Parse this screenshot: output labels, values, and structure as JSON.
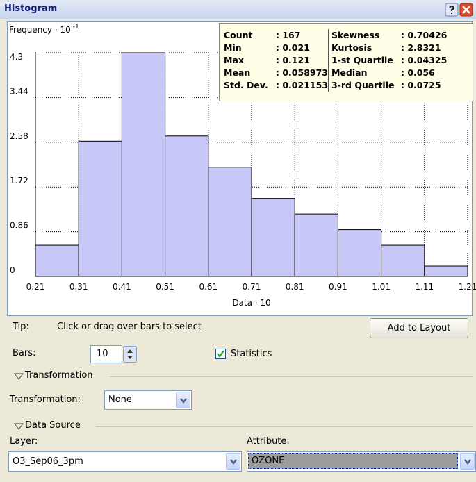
{
  "window": {
    "title": "Histogram"
  },
  "chart_data": {
    "type": "histogram",
    "ylabel": "Frequency · 10",
    "ylabel_exponent": "-1",
    "xlabel": "Data · 10",
    "bins": [
      0.21,
      0.31,
      0.41,
      0.51,
      0.61,
      0.71,
      0.81,
      0.91,
      1.01,
      1.11,
      1.21
    ],
    "counts": [
      0.6,
      2.6,
      4.3,
      2.7,
      2.1,
      1.5,
      1.2,
      0.9,
      0.6,
      0.2
    ],
    "color": "#c8c8f8",
    "xlim": [
      0.21,
      1.21
    ],
    "xticks": [
      0.21,
      0.31,
      0.41,
      0.51,
      0.61,
      0.71,
      0.81,
      0.91,
      1.01,
      1.11,
      1.21
    ],
    "ylim": [
      0,
      4.3
    ],
    "yticks": [
      0,
      0.86,
      1.72,
      2.58,
      3.44,
      4.3
    ],
    "grid": true
  },
  "statistics": {
    "left": [
      {
        "label": "Count",
        "value": ": 167"
      },
      {
        "label": "Min",
        "value": ": 0.021"
      },
      {
        "label": "Max",
        "value": ": 0.121"
      },
      {
        "label": "Mean",
        "value": ": 0.058973"
      },
      {
        "label": "Std. Dev.",
        "value": ": 0.021153"
      }
    ],
    "right": [
      {
        "label": "Skewness",
        "value": ": 0.70426"
      },
      {
        "label": "Kurtosis",
        "value": ": 2.8321"
      },
      {
        "label": "1-st Quartile",
        "value": ": 0.04325"
      },
      {
        "label": "Median",
        "value": ": 0.056"
      },
      {
        "label": "3-rd Quartile",
        "value": ": 0.0725"
      }
    ]
  },
  "controls": {
    "tip_label": "Tip:",
    "tip_text": "Click or drag over bars to select",
    "add_button": "Add to Layout",
    "bars_label": "Bars:",
    "bars_value": "10",
    "statistics_checkbox": "Statistics",
    "transformation_section": "Transformation",
    "transformation_label": "Transformation:",
    "transformation_value": "None",
    "data_source_section": "Data Source",
    "layer_label": "Layer:",
    "layer_value": "O3_Sep06_3pm",
    "attribute_label": "Attribute:",
    "attribute_value": "OZONE"
  }
}
